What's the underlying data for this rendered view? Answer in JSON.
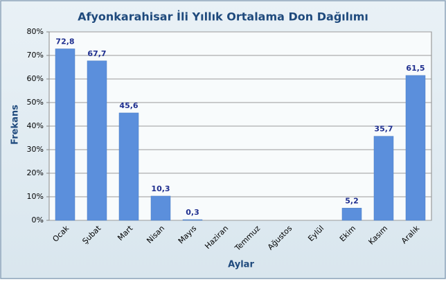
{
  "chart_data": {
    "type": "bar",
    "title": "Afyonkarahisar İli Yıllık Ortalama Don Dağılımı",
    "x_label": "Aylar",
    "y_label": "Frekans",
    "categories": [
      "Ocak",
      "Şubat",
      "Mart",
      "Nisan",
      "Mayıs",
      "Haziran",
      "Temmuz",
      "Ağustos",
      "Eylül",
      "Ekim",
      "Kasım",
      "Aralık"
    ],
    "values": [
      72.8,
      67.7,
      45.6,
      10.3,
      0.3,
      0,
      0,
      0,
      0,
      5.2,
      35.7,
      61.5
    ],
    "value_labels": [
      "72,8",
      "67,7",
      "45,6",
      "10,3",
      "0,3",
      null,
      null,
      null,
      null,
      "5,2",
      "35,7",
      "61,5"
    ],
    "color": "#5b8fdc",
    "ylim": [
      0,
      80
    ],
    "yticks": [
      {
        "value": 0,
        "label": "0%"
      },
      {
        "value": 10,
        "label": "10%"
      },
      {
        "value": 20,
        "label": "20%"
      },
      {
        "value": 30,
        "label": "30%"
      },
      {
        "value": 40,
        "label": "40%"
      },
      {
        "value": 50,
        "label": "50%"
      },
      {
        "value": 60,
        "label": "60%"
      },
      {
        "value": 70,
        "label": "70%"
      },
      {
        "value": 80,
        "label": "80%"
      }
    ],
    "grid": true
  }
}
